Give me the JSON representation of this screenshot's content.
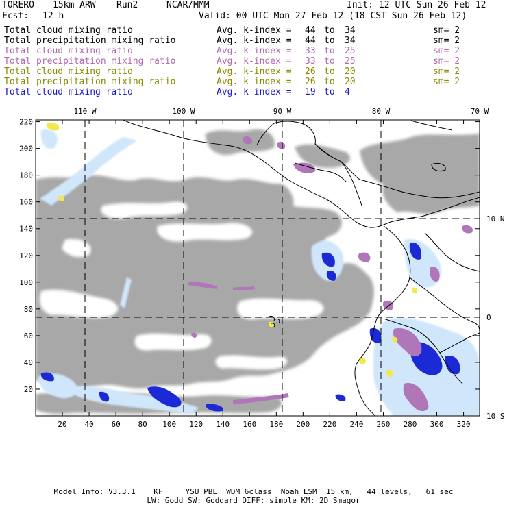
{
  "header": {
    "model": "TORERO",
    "resolution": "15km ARW",
    "run": "Run2",
    "org": "NCAR/MMM",
    "init": "Init: 12 UTC Sun 26 Feb 12",
    "fcst_label": "Fcst:",
    "fcst_value": "12 h",
    "valid": "Valid: 00 UTC Mon 27 Feb 12 (18 CST Sun 26 Feb 12)"
  },
  "legend": [
    {
      "field": "Total cloud mixing ratio",
      "avg": "Avg. k-index =",
      "from": "44",
      "to_word": "to",
      "to": "34",
      "sm": "sm= 2",
      "color": "#000000"
    },
    {
      "field": "Total precipitation mixing ratio",
      "avg": "Avg. k-index =",
      "from": "44",
      "to_word": "to",
      "to": "34",
      "sm": "sm= 2",
      "color": "#000000"
    },
    {
      "field": "Total cloud mixing ratio",
      "avg": "Avg. k-index =",
      "from": "33",
      "to_word": "to",
      "to": "25",
      "sm": "sm= 2",
      "color": "#b06ab0"
    },
    {
      "field": "Total precipitation mixing ratio",
      "avg": "Avg. k-index =",
      "from": "33",
      "to_word": "to",
      "to": "25",
      "sm": "sm= 2",
      "color": "#b06ab0"
    },
    {
      "field": "Total cloud mixing ratio",
      "avg": "Avg. k-index =",
      "from": "26",
      "to_word": "to",
      "to": "20",
      "sm": "sm= 2",
      "color": "#8a8a00"
    },
    {
      "field": "Total precipitation mixing ratio",
      "avg": "Avg. k-index =",
      "from": "26",
      "to_word": "to",
      "to": "20",
      "sm": "sm= 2",
      "color": "#8a8a00"
    },
    {
      "field": "Total cloud mixing ratio",
      "avg": "Avg. k-index =",
      "from": "19",
      "to_word": "to",
      "to": "4",
      "sm": "",
      "color": "#1a1acc"
    }
  ],
  "map": {
    "lon_labels_top": [
      "110 W",
      "100 W",
      "90 W",
      "80 W",
      "70 W"
    ],
    "lat_labels_right": [
      "10 N",
      "0",
      "10 S"
    ],
    "y_ticks": [
      "220",
      "200",
      "180",
      "160",
      "140",
      "120",
      "100",
      "80",
      "60",
      "40",
      "20"
    ],
    "x_ticks": [
      "20",
      "40",
      "60",
      "80",
      "100",
      "120",
      "140",
      "160",
      "180",
      "200",
      "220",
      "240",
      "260",
      "280",
      "300",
      "320"
    ],
    "colors": {
      "gray_cloud": "#a8a8a8",
      "light_blue": "#cfe6fb",
      "mid_blue": "#7fa8e6",
      "deep_blue": "#1c2ad6",
      "violet": "#b077b8",
      "yellow": "#f2e84a",
      "coast": "#000000"
    }
  },
  "footer": {
    "line1": "Model Info: V3.3.1    KF     YSU PBL  WDM 6class  Noah LSM  15 km,   44 levels,   61 sec",
    "line2": "LW: Godd SW: Goddard DIFF: simple KM: 2D Smagor"
  }
}
